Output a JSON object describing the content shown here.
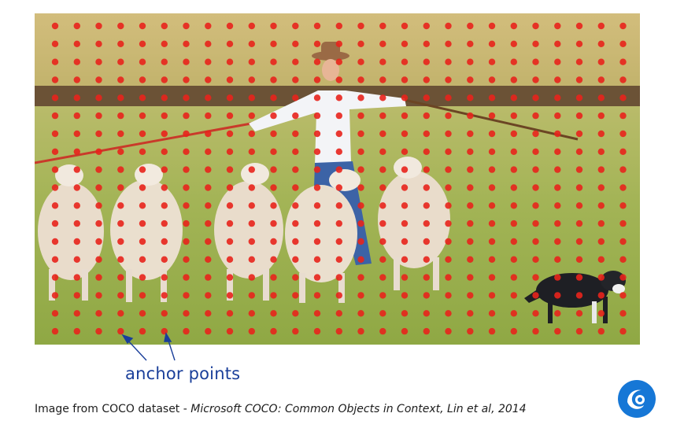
{
  "annotation": {
    "label": "anchor points",
    "color": "#1a3f9a"
  },
  "caption": {
    "prefix": "Image from COCO dataset - ",
    "citation": "Microsoft COCO: Common Objects in Context, Lin et al, 2014"
  },
  "anchor_grid": {
    "rows": 19,
    "columns": 28,
    "dot_color": "#e8231c"
  },
  "photo": {
    "subjects": [
      "person-in-hat",
      "sheep",
      "sheep",
      "sheep",
      "sheep",
      "sheep",
      "dog"
    ],
    "colors": {
      "grass": "#a6b552",
      "field": "#c8b56f",
      "dirt": "#6b5236"
    }
  },
  "logo": {
    "icon": "brand-logo-icon",
    "color": "#1677d6"
  }
}
